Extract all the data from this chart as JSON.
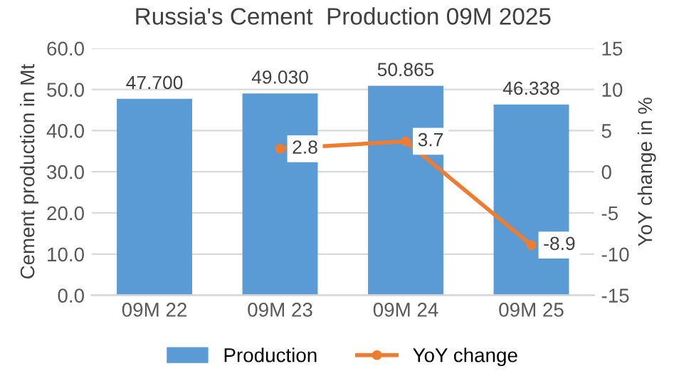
{
  "chart_data": {
    "type": "bar",
    "title": "Russia's Cement  Production 09M 2025",
    "ylabel": "Cement production in Mt",
    "y2label": "YoY change in %",
    "categories": [
      "09M 22",
      "09M 23",
      "09M 24",
      "09M 25"
    ],
    "series": [
      {
        "name": "Production",
        "color": "#5b9bd5",
        "values": [
          47.7,
          49.03,
          50.865,
          46.338
        ],
        "value_labels": [
          "47.700",
          "49.030",
          "50.865",
          "46.338"
        ]
      },
      {
        "name": "YoY change",
        "type": "line",
        "axis": "y2",
        "color": "#ed7d31",
        "marker": "circle",
        "values": [
          null,
          2.8,
          3.7,
          -8.9
        ],
        "value_labels": [
          null,
          "2.8",
          "3.7",
          "-8.9"
        ]
      }
    ],
    "ylim": [
      0,
      60
    ],
    "yticks": [
      {
        "value": 0,
        "label": "0.0"
      },
      {
        "value": 10,
        "label": "10.0"
      },
      {
        "value": 20,
        "label": "20.0"
      },
      {
        "value": 30,
        "label": "30.0"
      },
      {
        "value": 40,
        "label": "40.0"
      },
      {
        "value": 50,
        "label": "50.0"
      },
      {
        "value": 60,
        "label": "60.0"
      }
    ],
    "y2lim": [
      -15,
      15
    ],
    "y2ticks": [
      -15,
      -10,
      -5,
      0,
      5,
      10,
      15
    ],
    "grid": "y",
    "legend": "bottom"
  }
}
